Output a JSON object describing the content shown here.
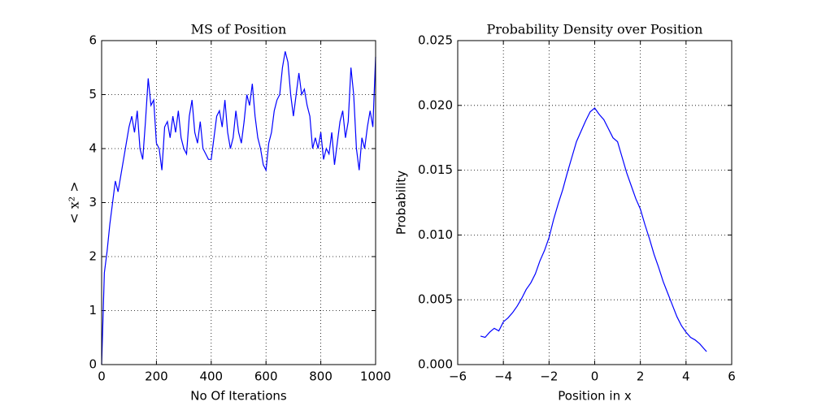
{
  "chart_data": [
    {
      "type": "line",
      "title": "MS of Position",
      "xlabel": "No Of Iterations",
      "ylabel": "< x² >",
      "xlim": [
        0,
        1000
      ],
      "xticks": [
        0,
        200,
        400,
        600,
        800,
        1000
      ],
      "ylim": [
        0,
        6
      ],
      "yticks": [
        0,
        1,
        2,
        3,
        4,
        5,
        6
      ],
      "grid": true,
      "x": [
        0,
        10,
        20,
        30,
        40,
        50,
        60,
        70,
        80,
        90,
        100,
        110,
        120,
        130,
        140,
        150,
        160,
        170,
        180,
        190,
        200,
        210,
        220,
        230,
        240,
        250,
        260,
        270,
        280,
        290,
        300,
        310,
        320,
        330,
        340,
        350,
        360,
        370,
        380,
        390,
        400,
        410,
        420,
        430,
        440,
        450,
        460,
        470,
        480,
        490,
        500,
        510,
        520,
        530,
        540,
        550,
        560,
        570,
        580,
        590,
        600,
        610,
        620,
        630,
        640,
        650,
        660,
        670,
        680,
        690,
        700,
        710,
        720,
        730,
        740,
        750,
        760,
        770,
        780,
        790,
        800,
        810,
        820,
        830,
        840,
        850,
        860,
        870,
        880,
        890,
        900,
        910,
        920,
        930,
        940,
        950,
        960,
        970,
        980,
        990,
        1000
      ],
      "series": [
        {
          "color": "#0000ff",
          "values": [
            0,
            1.7,
            2.1,
            2.6,
            3.0,
            3.4,
            3.2,
            3.5,
            3.8,
            4.1,
            4.4,
            4.6,
            4.3,
            4.7,
            4.0,
            3.8,
            4.5,
            5.3,
            4.8,
            4.9,
            4.1,
            4.0,
            3.6,
            4.4,
            4.5,
            4.2,
            4.6,
            4.3,
            4.7,
            4.2,
            4.0,
            3.9,
            4.6,
            4.9,
            4.3,
            4.1,
            4.5,
            4.0,
            3.9,
            3.8,
            3.8,
            4.2,
            4.6,
            4.7,
            4.4,
            4.9,
            4.3,
            4.0,
            4.2,
            4.7,
            4.3,
            4.1,
            4.5,
            5.0,
            4.8,
            5.2,
            4.6,
            4.2,
            4.0,
            3.7,
            3.6,
            4.1,
            4.3,
            4.7,
            4.9,
            5.0,
            5.5,
            5.8,
            5.6,
            5.0,
            4.6,
            5.0,
            5.4,
            5.0,
            5.1,
            4.8,
            4.6,
            4.0,
            4.2,
            4.0,
            4.3,
            3.8,
            4.0,
            3.9,
            4.3,
            3.7,
            4.1,
            4.5,
            4.7,
            4.2,
            4.5,
            5.5,
            5.0,
            4.0,
            3.6,
            4.2,
            4.0,
            4.4,
            4.7,
            4.4,
            5.7
          ]
        }
      ]
    },
    {
      "type": "line",
      "title": "Probability Density over Position",
      "xlabel": "Position in x",
      "ylabel": "Probability",
      "xlim": [
        -6,
        6
      ],
      "xticks": [
        {
          "value": -6,
          "label": "−6"
        },
        {
          "value": -4,
          "label": "−4"
        },
        {
          "value": -2,
          "label": "−2"
        },
        0,
        2,
        4,
        6
      ],
      "ylim": [
        0,
        0.025
      ],
      "yticks": [
        {
          "value": 0,
          "label": "0.000"
        },
        {
          "value": 0.005,
          "label": "0.005"
        },
        {
          "value": 0.01,
          "label": "0.010"
        },
        {
          "value": 0.015,
          "label": "0.015"
        },
        {
          "value": 0.02,
          "label": "0.020"
        },
        {
          "value": 0.025,
          "label": "0.025"
        }
      ],
      "grid": true,
      "x": [
        -5.0,
        -4.8,
        -4.6,
        -4.4,
        -4.2,
        -4.0,
        -3.8,
        -3.6,
        -3.4,
        -3.2,
        -3.0,
        -2.8,
        -2.6,
        -2.4,
        -2.2,
        -2.0,
        -1.8,
        -1.6,
        -1.4,
        -1.2,
        -1.0,
        -0.8,
        -0.6,
        -0.4,
        -0.2,
        0.0,
        0.2,
        0.4,
        0.6,
        0.8,
        1.0,
        1.2,
        1.4,
        1.6,
        1.8,
        2.0,
        2.2,
        2.4,
        2.6,
        2.8,
        3.0,
        3.2,
        3.4,
        3.6,
        3.8,
        4.0,
        4.2,
        4.4,
        4.6,
        4.8,
        4.9
      ],
      "series": [
        {
          "color": "#0000ff",
          "values": [
            0.0022,
            0.0021,
            0.0025,
            0.0028,
            0.0026,
            0.0033,
            0.0036,
            0.004,
            0.0045,
            0.0051,
            0.0058,
            0.0063,
            0.007,
            0.008,
            0.0088,
            0.0098,
            0.0112,
            0.0124,
            0.0135,
            0.0148,
            0.016,
            0.0172,
            0.018,
            0.0188,
            0.0195,
            0.0198,
            0.0193,
            0.0189,
            0.0182,
            0.0175,
            0.0172,
            0.016,
            0.0148,
            0.0138,
            0.0128,
            0.012,
            0.0108,
            0.0097,
            0.0085,
            0.0075,
            0.0064,
            0.0055,
            0.0046,
            0.0037,
            0.003,
            0.0025,
            0.0021,
            0.0019,
            0.0016,
            0.0012,
            0.001
          ]
        }
      ]
    }
  ]
}
